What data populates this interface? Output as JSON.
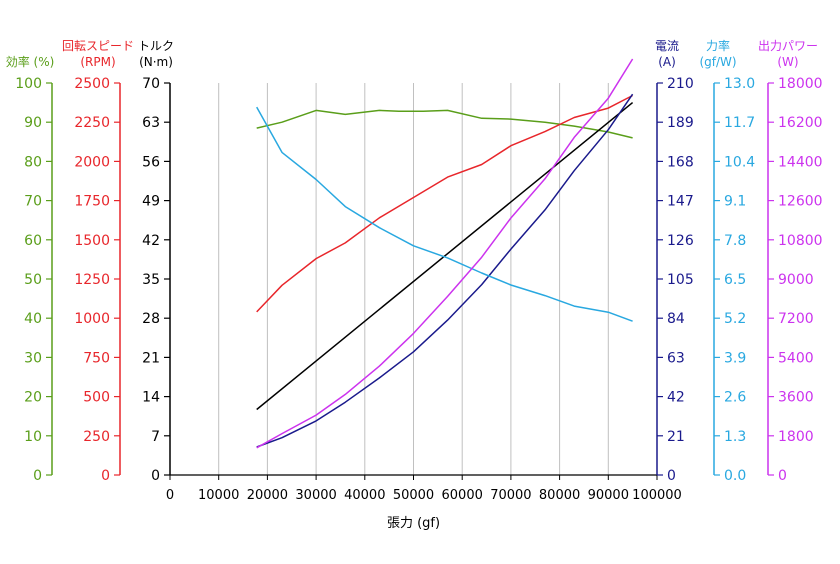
{
  "chart_data": {
    "type": "line",
    "xlabel": "張力 (gf)",
    "xlim": [
      0,
      100000
    ],
    "xticks": [
      0,
      10000,
      20000,
      30000,
      40000,
      50000,
      60000,
      70000,
      80000,
      90000,
      100000
    ],
    "axes": [
      {
        "id": "eff",
        "title": "効率 (%)",
        "unit": "",
        "color": "#5a9e1a",
        "lim": [
          0,
          100
        ],
        "ticks": [
          "0",
          "10",
          "20",
          "30",
          "40",
          "50",
          "60",
          "70",
          "80",
          "90",
          "100"
        ]
      },
      {
        "id": "rpm",
        "title": "回転スピード",
        "unit": "(RPM)",
        "color": "#e8262b",
        "lim": [
          0,
          2500
        ],
        "ticks": [
          "0",
          "250",
          "500",
          "750",
          "1000",
          "1250",
          "1500",
          "1750",
          "2000",
          "2250",
          "2500"
        ]
      },
      {
        "id": "torque",
        "title": "トルク",
        "unit": "(N·m)",
        "color": "#000000",
        "lim": [
          0,
          70
        ],
        "ticks": [
          "0",
          "7",
          "14",
          "21",
          "28",
          "35",
          "42",
          "49",
          "56",
          "63",
          "70"
        ]
      },
      {
        "id": "current",
        "title": "電流",
        "unit": "(A)",
        "color": "#1a1a8c",
        "lim": [
          0,
          210
        ],
        "ticks": [
          "0",
          "21",
          "42",
          "63",
          "84",
          "105",
          "126",
          "147",
          "168",
          "189",
          "210"
        ]
      },
      {
        "id": "force",
        "title": "力率",
        "unit": "(gf/W)",
        "color": "#29a8e0",
        "lim": [
          0,
          13
        ],
        "ticks": [
          "0.0",
          "1.3",
          "2.6",
          "3.9",
          "5.2",
          "6.5",
          "7.8",
          "9.1",
          "10.4",
          "11.7",
          "13.0"
        ]
      },
      {
        "id": "power",
        "title": "出力パワー",
        "unit": "(W)",
        "color": "#cc33ee",
        "lim": [
          0,
          18000
        ],
        "ticks": [
          "0",
          "1800",
          "3600",
          "5400",
          "7200",
          "9000",
          "10800",
          "12600",
          "14400",
          "16200",
          "18000"
        ]
      }
    ],
    "series": [
      {
        "axis": "eff",
        "color": "#5a9e1a",
        "x": [
          17800,
          23000,
          30000,
          36000,
          43000,
          47000,
          52000,
          57000,
          64000,
          70000,
          77000,
          83000,
          90000,
          95000
        ],
        "y": [
          88.5,
          90,
          93,
          92,
          93,
          92.8,
          92.8,
          93,
          91,
          90.8,
          90,
          89,
          87.5,
          86
        ]
      },
      {
        "axis": "rpm",
        "color": "#e8262b",
        "x": [
          17800,
          23000,
          30000,
          36000,
          43000,
          50000,
          57000,
          64000,
          70000,
          77000,
          83000,
          90000,
          95000
        ],
        "y": [
          1040,
          1210,
          1380,
          1480,
          1640,
          1770,
          1900,
          1980,
          2100,
          2190,
          2280,
          2340,
          2420
        ]
      },
      {
        "axis": "torque",
        "color": "#000000",
        "x": [
          17800,
          95000
        ],
        "y": [
          11.7,
          66.5
        ]
      },
      {
        "axis": "current",
        "color": "#1a1a8c",
        "x": [
          17800,
          23000,
          30000,
          36000,
          43000,
          50000,
          57000,
          64000,
          70000,
          77000,
          83000,
          90000,
          95000
        ],
        "y": [
          15,
          20,
          29,
          39,
          52,
          66,
          83,
          102,
          121,
          142,
          163,
          185,
          204
        ]
      },
      {
        "axis": "force",
        "color": "#29a8e0",
        "x": [
          17800,
          23000,
          30000,
          36000,
          43000,
          50000,
          57000,
          64000,
          70000,
          77000,
          83000,
          90000,
          95000
        ],
        "y": [
          12.2,
          10.7,
          9.8,
          8.9,
          8.2,
          7.6,
          7.2,
          6.7,
          6.3,
          5.95,
          5.6,
          5.4,
          5.1
        ]
      },
      {
        "axis": "power",
        "color": "#cc33ee",
        "x": [
          17800,
          23000,
          30000,
          36000,
          43000,
          50000,
          57000,
          64000,
          70000,
          77000,
          83000,
          90000,
          95000
        ],
        "y": [
          1250,
          1900,
          2750,
          3700,
          5000,
          6500,
          8200,
          10000,
          11800,
          13600,
          15500,
          17300,
          19100
        ]
      }
    ]
  }
}
